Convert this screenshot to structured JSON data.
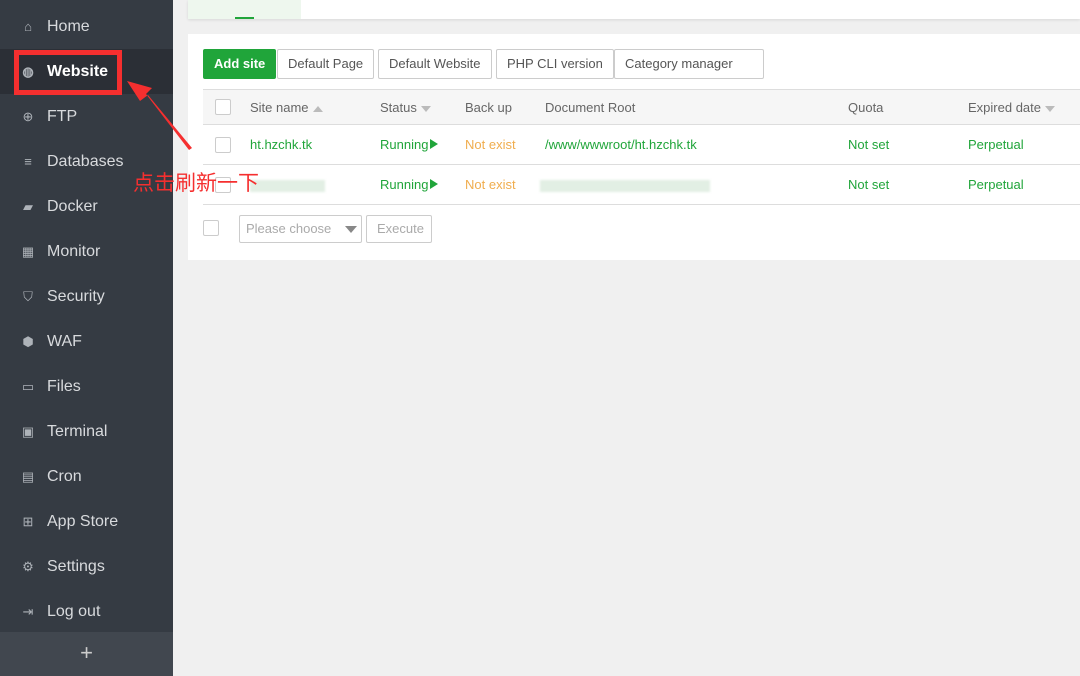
{
  "sidebar": {
    "items": [
      {
        "label": "Home",
        "icon": "home-icon",
        "glyph": "⌂"
      },
      {
        "label": "Website",
        "icon": "globe-icon",
        "glyph": "◍",
        "active": true
      },
      {
        "label": "FTP",
        "icon": "ftp-icon",
        "glyph": "⊕"
      },
      {
        "label": "Databases",
        "icon": "database-icon",
        "glyph": "≡"
      },
      {
        "label": "Docker",
        "icon": "docker-icon",
        "glyph": "▰"
      },
      {
        "label": "Monitor",
        "icon": "monitor-icon",
        "glyph": "▦"
      },
      {
        "label": "Security",
        "icon": "shield-icon",
        "glyph": "⛉"
      },
      {
        "label": "WAF",
        "icon": "waf-icon",
        "glyph": "⬢"
      },
      {
        "label": "Files",
        "icon": "folder-icon",
        "glyph": "▭"
      },
      {
        "label": "Terminal",
        "icon": "terminal-icon",
        "glyph": "▣"
      },
      {
        "label": "Cron",
        "icon": "calendar-icon",
        "glyph": "▤"
      },
      {
        "label": "App Store",
        "icon": "grid-icon",
        "glyph": "⊞"
      },
      {
        "label": "Settings",
        "icon": "gear-icon",
        "glyph": "⚙"
      },
      {
        "label": "Log out",
        "icon": "logout-icon",
        "glyph": "⇥"
      }
    ],
    "add_label": "+"
  },
  "toolbar": {
    "add_site": "Add site",
    "default_page": "Default Page",
    "default_website": "Default Website",
    "php_cli": "PHP CLI version",
    "category": "Category manager"
  },
  "table": {
    "headers": [
      "Site name",
      "Status",
      "Back up",
      "Document Root",
      "Quota",
      "Expired date"
    ],
    "rows": [
      {
        "name": "ht.hzchk.tk",
        "status": "Running",
        "backup": "Not exist",
        "root": "/www/wwwroot/ht.hzchk.tk",
        "quota": "Not set",
        "expired": "Perpetual"
      },
      {
        "name": "",
        "status": "Running",
        "backup": "Not exist",
        "root": "",
        "quota": "Not set",
        "expired": "Perpetual"
      }
    ]
  },
  "footer": {
    "select_placeholder": "Please choose",
    "execute": "Execute"
  },
  "annotation": {
    "text": "点击刷新一下",
    "color": "#f52f2f"
  },
  "colors": {
    "accent": "#20a53a",
    "warning": "#f0ad4e",
    "sidebar": "#353b43"
  }
}
